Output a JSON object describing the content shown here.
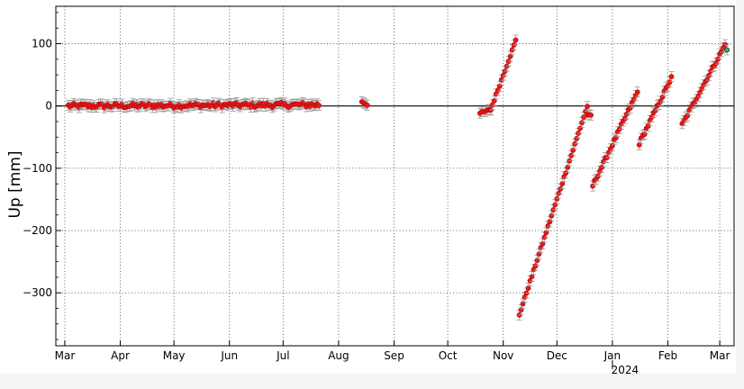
{
  "chart_data": {
    "type": "scatter",
    "title": "",
    "xlabel": "",
    "ylabel": "Up [mm]",
    "year_label": "2024",
    "x_tick_labels": [
      "Mar",
      "Apr",
      "May",
      "Jun",
      "Jul",
      "Aug",
      "Sep",
      "Oct",
      "Nov",
      "Dec",
      "Jan",
      "Feb",
      "Mar"
    ],
    "y_tick_labels": [
      "100",
      "0",
      "−100",
      "−200",
      "−300"
    ],
    "y_ticks": [
      100,
      0,
      -100,
      -200,
      -300
    ],
    "ylim": [
      -385,
      160
    ],
    "xlim": [
      "2023-02-24",
      "2024-03-09"
    ],
    "grid": true,
    "zero_line": true,
    "colors": {
      "points": "#e8191a",
      "latest_point": "#3cb371",
      "error_bars": "#9a9a9a"
    },
    "error_bar_half_width_mm": 8,
    "series": [
      {
        "segments": [
          {
            "start": "2023-03-03",
            "end": "2023-07-21",
            "start_value": 0,
            "end_value": 2,
            "noise": 4
          },
          {
            "start": "2023-08-14",
            "end": "2023-08-17",
            "start_value": 7,
            "end_value": 2,
            "noise": 1
          },
          {
            "start": "2023-10-19",
            "end": "2023-10-25",
            "start_value": -12,
            "end_value": -6,
            "noise": 2
          },
          {
            "start": "2023-10-25",
            "end": "2023-11-08",
            "start_value": -6,
            "end_value": 105,
            "noise": 2
          },
          {
            "start": "2023-11-10",
            "end": "2023-12-18",
            "start_value": -335,
            "end_value": 0,
            "noise": 2
          },
          {
            "start": "2023-12-18",
            "end": "2023-12-20",
            "start_value": -15,
            "end_value": -15,
            "noise": 1
          },
          {
            "start": "2023-12-21",
            "end": "2024-01-15",
            "start_value": -128,
            "end_value": 22,
            "noise": 3
          },
          {
            "start": "2024-01-16",
            "end": "2024-02-03",
            "start_value": -60,
            "end_value": 45,
            "noise": 3
          },
          {
            "start": "2024-02-09",
            "end": "2024-03-04",
            "start_value": -30,
            "end_value": 98,
            "noise": 3
          }
        ]
      }
    ],
    "latest_point": {
      "date": "2024-03-05",
      "value": 90
    }
  }
}
